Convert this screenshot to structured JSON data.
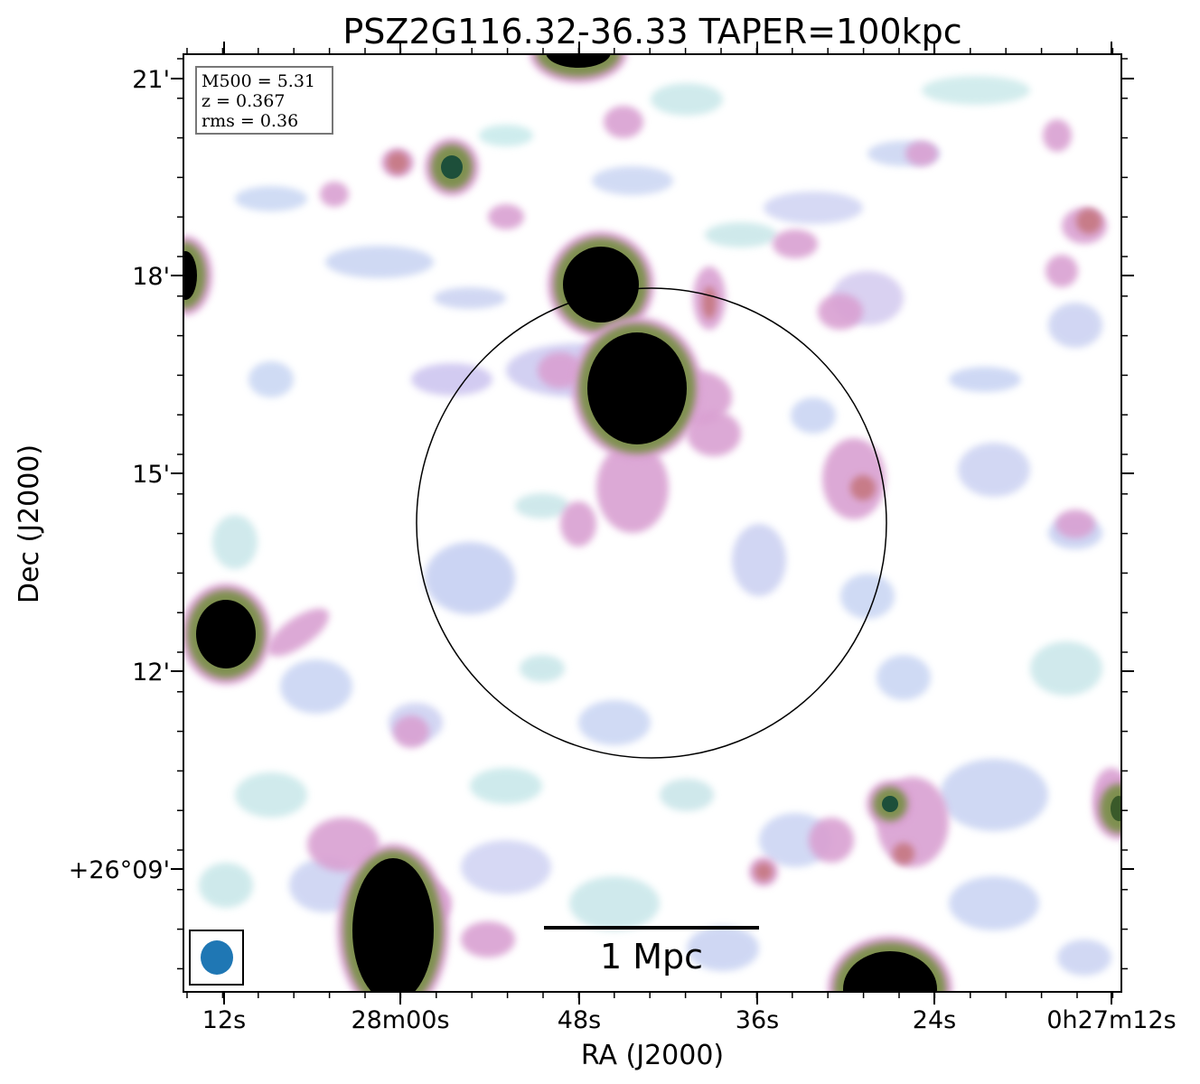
{
  "title": "PSZ2G116.32-36.33 TAPER=100kpc",
  "info_box": {
    "lines": [
      "M500 = 5.31",
      "z = 0.367",
      "rms = 0.36"
    ]
  },
  "axes": {
    "xlabel": "RA (J2000)",
    "ylabel": "Dec (J2000)",
    "x_ticks": [
      "12s",
      "28m00s",
      "48s",
      "36s",
      "24s",
      "0h27m12s"
    ],
    "y_ticks": [
      "21'",
      "18'",
      "15'",
      "12'",
      "+26°09'"
    ]
  },
  "scale_bar": {
    "label": "1 Mpc"
  },
  "colors": {
    "background": "#ffffff",
    "beam": "#1f77b4",
    "source_core": "#000000"
  }
}
